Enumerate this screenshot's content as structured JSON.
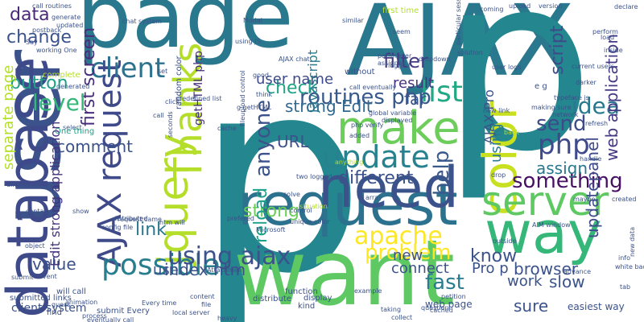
{
  "words": [
    {
      "text": "p",
      "color": "#24868e"
    },
    {
      "text": "want",
      "color": "#5ec962"
    },
    {
      "text": "AJAX",
      "color": "#2a788e"
    },
    {
      "text": "page",
      "color": "#2a788e"
    },
    {
      "text": "user",
      "color": "#3b528b"
    },
    {
      "text": "p",
      "color": "#24868e"
    },
    {
      "text": "request",
      "color": "#2c728e"
    },
    {
      "text": "need",
      "color": "#3b528b"
    },
    {
      "text": "database",
      "color": "#3e4a89"
    },
    {
      "text": "way",
      "color": "#35b779"
    },
    {
      "text": "jquery",
      "color": "#b5de2b"
    },
    {
      "text": "Thanks",
      "color": "#b5de2b"
    },
    {
      "text": "make",
      "color": "#6ccd5a"
    },
    {
      "text": "color",
      "color": "#c8e020"
    },
    {
      "text": "server",
      "color": "#5ec962"
    },
    {
      "text": "AJAX request",
      "color": "#3e4a89"
    },
    {
      "text": "update",
      "color": "#26828e"
    },
    {
      "text": "possible",
      "color": "#287d8e"
    },
    {
      "text": "list",
      "color": "#22a884"
    },
    {
      "text": "using ajax",
      "color": "#3b528b"
    },
    {
      "text": "php",
      "color": "#3e4a89"
    },
    {
      "text": "idea",
      "color": "#2a788e"
    },
    {
      "text": "routines php",
      "color": "#38598c"
    },
    {
      "text": "filter",
      "color": "#443983"
    },
    {
      "text": "data",
      "color": "#482878"
    },
    {
      "text": "change",
      "color": "#3b528b"
    },
    {
      "text": "button",
      "color": "#1fa088"
    },
    {
      "text": "client",
      "color": "#2c728e"
    },
    {
      "text": "first screen",
      "color": "#472d7b"
    },
    {
      "text": "level",
      "color": "#35b779"
    },
    {
      "text": "check",
      "color": "#20a386"
    },
    {
      "text": "user name",
      "color": "#3e4a89"
    },
    {
      "text": "result",
      "color": "#46337e"
    },
    {
      "text": "far",
      "color": "#3b528b"
    },
    {
      "text": "anyone",
      "color": "#3b528b"
    },
    {
      "text": "strong Edit",
      "color": "#31688e"
    },
    {
      "text": "URL",
      "color": "#3b528b"
    },
    {
      "text": "send",
      "color": "#3e4a89"
    },
    {
      "text": "web application",
      "color": "#443983"
    },
    {
      "text": "something",
      "color": "#471063"
    },
    {
      "text": "assign",
      "color": "#2a788e"
    },
    {
      "text": "help",
      "color": "#38598c"
    },
    {
      "text": "different",
      "color": "#3b528b"
    },
    {
      "text": "apache",
      "color": "#fde725"
    },
    {
      "text": "problem",
      "color": "#fde725"
    },
    {
      "text": "know",
      "color": "#3b528b"
    },
    {
      "text": "fast",
      "color": "#287d8e"
    },
    {
      "text": "value",
      "color": "#3b528b"
    },
    {
      "text": "index htm",
      "color": "#3b528b"
    },
    {
      "text": "link",
      "color": "#2a788e"
    },
    {
      "text": "use",
      "color": "#3b528b"
    },
    {
      "text": "comment",
      "color": "#3b528b"
    },
    {
      "text": "separate page",
      "color": "#b5de2b"
    },
    {
      "text": "strong",
      "color": "#6ccd5a"
    },
    {
      "text": "reload",
      "color": "#1fa088"
    },
    {
      "text": "updatepanel",
      "color": "#3e4a89"
    },
    {
      "text": "browser",
      "color": "#3b528b"
    },
    {
      "text": "slow",
      "color": "#3b528b"
    },
    {
      "text": "sure",
      "color": "#3b528b"
    },
    {
      "text": "work",
      "color": "#3b528b"
    },
    {
      "text": "connect",
      "color": "#3b528b"
    },
    {
      "text": "new",
      "color": "#3b528b"
    },
    {
      "text": "Pro p",
      "color": "#3b528b"
    },
    {
      "text": "getHTML php",
      "color": "#472d7b"
    },
    {
      "text": "script",
      "color": "#3e4a89"
    },
    {
      "text": "javascript",
      "color": "#2a788e"
    },
    {
      "text": "AJAX Pro",
      "color": "#3b528b"
    },
    {
      "text": "using",
      "color": "#2a788e"
    },
    {
      "text": "Edit strong application",
      "color": "#46337e"
    },
    {
      "text": "client system",
      "color": "#3b528b"
    },
    {
      "text": "web page",
      "color": "#3b528b"
    },
    {
      "text": "easiest way",
      "color": "#3b528b"
    },
    {
      "text": "Attachment",
      "color": "#3b528b"
    },
    {
      "text": "call routines",
      "color": "#3b528b"
    },
    {
      "text": "generate",
      "color": "#3b528b"
    },
    {
      "text": "updated",
      "color": "#3b528b"
    },
    {
      "text": "postback",
      "color": "#3b528b"
    },
    {
      "text": "working One",
      "color": "#3b528b"
    },
    {
      "text": "Say",
      "color": "#3b528b"
    },
    {
      "text": "complete",
      "color": "#b5de2b"
    },
    {
      "text": "generated",
      "color": "#3b528b"
    },
    {
      "text": "select",
      "color": "#3b528b"
    },
    {
      "text": "One thing",
      "color": "#1fa088"
    },
    {
      "text": "difference",
      "color": "#3b528b"
    },
    {
      "text": "contains",
      "color": "#3b528b"
    },
    {
      "text": "object",
      "color": "#3b528b"
    },
    {
      "text": "submit",
      "color": "#3b528b"
    },
    {
      "text": "will call",
      "color": "#3b528b"
    },
    {
      "text": "submitted links",
      "color": "#3b528b"
    },
    {
      "text": "find",
      "color": "#3b528b"
    },
    {
      "text": "guess",
      "color": "#3b528b"
    },
    {
      "text": "event",
      "color": "#3b528b"
    },
    {
      "text": "show",
      "color": "#3b528b"
    },
    {
      "text": "animation",
      "color": "#3b528b"
    },
    {
      "text": "process",
      "color": "#3b528b"
    },
    {
      "text": "submit Every",
      "color": "#3b528b"
    },
    {
      "text": "eventually call",
      "color": "#3b528b"
    },
    {
      "text": "local server",
      "color": "#3b528b"
    },
    {
      "text": "chat system",
      "color": "#3b528b"
    },
    {
      "text": "first time",
      "color": "#b5de2b"
    },
    {
      "text": "similar",
      "color": "#3b528b"
    },
    {
      "text": "coming",
      "color": "#3b528b"
    },
    {
      "text": "upload",
      "color": "#3b528b"
    },
    {
      "text": "version",
      "color": "#3b528b"
    },
    {
      "text": "declare",
      "color": "#3b528b"
    },
    {
      "text": "perform",
      "color": "#3b528b"
    },
    {
      "text": "load",
      "color": "#3b528b"
    },
    {
      "text": "inside",
      "color": "#3b528b"
    },
    {
      "text": "particular session",
      "color": "#3b528b"
    },
    {
      "text": "solution",
      "color": "#3b528b"
    },
    {
      "text": "user logs",
      "color": "#3b528b"
    },
    {
      "text": "current users",
      "color": "#3b528b"
    },
    {
      "text": "darker",
      "color": "#3b528b"
    },
    {
      "text": "e g",
      "color": "#3b528b"
    },
    {
      "text": "typeface js",
      "color": "#3b528b"
    },
    {
      "text": "making sure",
      "color": "#3b528b"
    },
    {
      "text": "new link",
      "color": "#3b528b"
    },
    {
      "text": "network",
      "color": "#3b528b"
    },
    {
      "text": "refresh",
      "color": "#3b528b"
    },
    {
      "text": "handle",
      "color": "#3b528b"
    },
    {
      "text": "drop",
      "color": "#3b528b"
    },
    {
      "text": "maybe",
      "color": "#3b528b"
    },
    {
      "text": "created",
      "color": "#3b528b"
    },
    {
      "text": "AIM window",
      "color": "#3b528b"
    },
    {
      "text": "new data",
      "color": "#3b528b"
    },
    {
      "text": "info",
      "color": "#3b528b"
    },
    {
      "text": "white background",
      "color": "#3b528b"
    },
    {
      "text": "tab",
      "color": "#3b528b"
    },
    {
      "text": "advance",
      "color": "#3b528b"
    },
    {
      "text": "petition",
      "color": "#3b528b"
    },
    {
      "text": "question",
      "color": "#3b528b"
    },
    {
      "text": "taking",
      "color": "#3b528b"
    },
    {
      "text": "collect",
      "color": "#3b528b"
    },
    {
      "text": "kind",
      "color": "#3b528b"
    },
    {
      "text": "display",
      "color": "#3b528b"
    },
    {
      "text": "distribute",
      "color": "#3b528b"
    },
    {
      "text": "heavy",
      "color": "#3b528b"
    },
    {
      "text": "content",
      "color": "#3b528b"
    },
    {
      "text": "Every time",
      "color": "#3b528b"
    },
    {
      "text": "request came",
      "color": "#3b528b"
    },
    {
      "text": "config file",
      "color": "#3b528b"
    },
    {
      "text": "htm will",
      "color": "#3b528b"
    },
    {
      "text": "function",
      "color": "#3b528b"
    },
    {
      "text": "file",
      "color": "#3b528b"
    },
    {
      "text": "example",
      "color": "#3b528b"
    },
    {
      "text": "solve",
      "color": "#3b528b"
    },
    {
      "text": "situation",
      "color": "#b5de2b"
    },
    {
      "text": "control",
      "color": "#3b528b"
    },
    {
      "text": "unique color",
      "color": "#3b528b"
    },
    {
      "text": "array",
      "color": "#3b528b"
    },
    {
      "text": "two logged",
      "color": "#3b528b"
    },
    {
      "text": "added",
      "color": "#3b528b"
    },
    {
      "text": "displayed",
      "color": "#3b528b"
    },
    {
      "text": "php verify",
      "color": "#3b528b"
    },
    {
      "text": "global variable",
      "color": "#3b528b"
    },
    {
      "text": "prefered",
      "color": "#3b528b"
    },
    {
      "text": "without",
      "color": "#3b528b"
    },
    {
      "text": "assigned",
      "color": "#3b528b"
    },
    {
      "text": "logged",
      "color": "#3b528b"
    },
    {
      "text": "parameter",
      "color": "#3b528b"
    },
    {
      "text": "dropdown",
      "color": "#3b528b"
    },
    {
      "text": "call eventually",
      "color": "#3b528b"
    },
    {
      "text": "seem",
      "color": "#3b528b"
    },
    {
      "text": "think",
      "color": "#3b528b"
    },
    {
      "text": "g getHTML",
      "color": "#3b528b"
    },
    {
      "text": "cache",
      "color": "#3b528b"
    },
    {
      "text": "fileupload control",
      "color": "#3b528b"
    },
    {
      "text": "predefined list",
      "color": "#3b528b"
    },
    {
      "text": "random color",
      "color": "#3b528b"
    },
    {
      "text": "seconds",
      "color": "#3b528b"
    },
    {
      "text": "click",
      "color": "#3b528b"
    },
    {
      "text": "set",
      "color": "#3b528b"
    },
    {
      "text": "using JS",
      "color": "#3b528b"
    },
    {
      "text": "Modal",
      "color": "#3b528b"
    },
    {
      "text": "AJAX chat",
      "color": "#3b528b"
    },
    {
      "text": "good",
      "color": "#3b528b"
    },
    {
      "text": "distributed",
      "color": "#3b528b"
    },
    {
      "text": "Microsoft",
      "color": "#3b528b"
    },
    {
      "text": "anything",
      "color": "#b5de2b"
    },
    {
      "text": "back",
      "color": "#b5de2b"
    },
    {
      "text": "outside",
      "color": "#3b528b"
    },
    {
      "text": "cached",
      "color": "#3b528b"
    },
    {
      "text": "call",
      "color": "#3b528b"
    }
  ]
}
